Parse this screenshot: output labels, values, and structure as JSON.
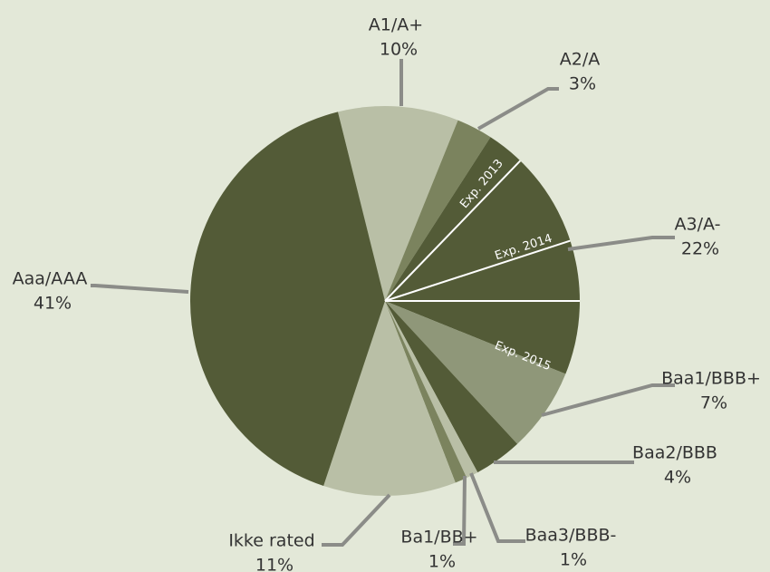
{
  "chart_data": {
    "type": "pie",
    "categories": [
      "A1/A+",
      "A2/A",
      "A3/A-",
      "Baa1/BBB+",
      "Baa2/BBB",
      "Baa3/BBB-",
      "Ba1/BB+",
      "Ikke rated",
      "Aaa/AAA"
    ],
    "values": [
      10,
      3,
      22,
      7,
      4,
      1,
      1,
      11,
      41
    ],
    "value_labels": [
      "10%",
      "3%",
      "22%",
      "7%",
      "4%",
      "1%",
      "1%",
      "11%",
      "41%"
    ],
    "colors": [
      "#b9bfa6",
      "#7b835e",
      "#535b37",
      "#8f9779",
      "#535b37",
      "#b9bfa6",
      "#7b835e",
      "#b9bfa6",
      "#535b37"
    ],
    "annotations": [
      "Exp. 2013",
      "Exp. 2014",
      "Exp. 2015"
    ]
  }
}
